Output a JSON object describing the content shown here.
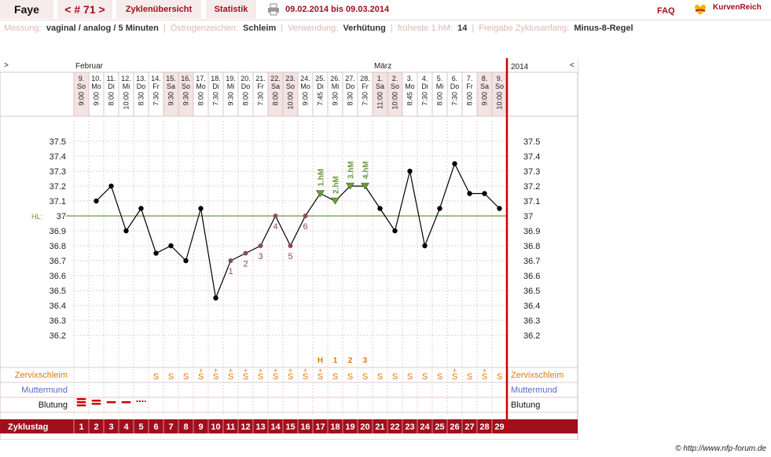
{
  "header": {
    "user": "Faye",
    "cycle_label": "< # 71 >",
    "overview_label": "Zyklenübersicht",
    "stats_label": "Statistik",
    "date_range": "09.02.2014 bis 09.03.2014",
    "faq_label": "FAQ",
    "logo_text": "KurvenReich",
    "print_icon": "printer-icon",
    "logo_icon": "heart-logo-icon"
  },
  "info": [
    {
      "key": "Messung:",
      "value": "vaginal / analog / 5 Minuten"
    },
    {
      "key": "Östrogenzeichen:",
      "value": "Schleim"
    },
    {
      "key": "Verwendung:",
      "value": "Verhütung"
    },
    {
      "key": "früheste 1.hM:",
      "value": "14"
    },
    {
      "key": "Freigabe Zyklusanfang:",
      "value": "Minus-8-Regel"
    }
  ],
  "chart": {
    "nav_left": ">",
    "nav_right": "<",
    "year": "2014",
    "month_feb": "Februar",
    "month_mar": "März",
    "days": [
      {
        "d": "9.",
        "w": "So",
        "t": "9:00",
        "we": true
      },
      {
        "d": "10.",
        "w": "Mo",
        "t": "9:00",
        "we": false
      },
      {
        "d": "11.",
        "w": "Di",
        "t": "8:00",
        "we": false
      },
      {
        "d": "12.",
        "w": "Mi",
        "t": "10:00",
        "we": false
      },
      {
        "d": "13.",
        "w": "Do",
        "t": "8:30",
        "we": false
      },
      {
        "d": "14.",
        "w": "Fr",
        "t": "7:30",
        "we": false
      },
      {
        "d": "15.",
        "w": "Sa",
        "t": "9:30",
        "we": true
      },
      {
        "d": "16.",
        "w": "So",
        "t": "9:30",
        "we": true
      },
      {
        "d": "17.",
        "w": "Mo",
        "t": "8:00",
        "we": false
      },
      {
        "d": "18.",
        "w": "Di",
        "t": "7:30",
        "we": false
      },
      {
        "d": "19.",
        "w": "Mi",
        "t": "9:30",
        "we": false
      },
      {
        "d": "20.",
        "w": "Do",
        "t": "8:00",
        "we": false
      },
      {
        "d": "21.",
        "w": "Fr",
        "t": "7:30",
        "we": false
      },
      {
        "d": "22.",
        "w": "Sa",
        "t": "8:00",
        "we": true
      },
      {
        "d": "23.",
        "w": "So",
        "t": "10:00",
        "we": true
      },
      {
        "d": "24.",
        "w": "Mo",
        "t": "9:00",
        "we": false
      },
      {
        "d": "25.",
        "w": "Di",
        "t": "7:45",
        "we": false
      },
      {
        "d": "26.",
        "w": "Mi",
        "t": "9:30",
        "we": false
      },
      {
        "d": "27.",
        "w": "Do",
        "t": "8:30",
        "we": false
      },
      {
        "d": "28.",
        "w": "Fr",
        "t": "7:30",
        "we": false
      },
      {
        "d": "1.",
        "w": "Sa",
        "t": "11:00",
        "we": true
      },
      {
        "d": "2.",
        "w": "So",
        "t": "10:00",
        "we": true
      },
      {
        "d": "3.",
        "w": "Mo",
        "t": "8:45",
        "we": false
      },
      {
        "d": "4.",
        "w": "Di",
        "t": "7:30",
        "we": false
      },
      {
        "d": "5.",
        "w": "Mi",
        "t": "8:00",
        "we": false
      },
      {
        "d": "6.",
        "w": "Do",
        "t": "7:30",
        "we": false
      },
      {
        "d": "7.",
        "w": "Fr",
        "t": "8:00",
        "we": false
      },
      {
        "d": "8.",
        "w": "Sa",
        "t": "9:00",
        "we": true
      },
      {
        "d": "9.",
        "w": "So",
        "t": "10:00",
        "we": true
      }
    ],
    "y_ticks": [
      "37.5",
      "37.4",
      "37.3",
      "37.2",
      "37.1",
      "37",
      "36.9",
      "36.8",
      "36.7",
      "36.6",
      "36.5",
      "36.4",
      "36.3",
      "36.2"
    ],
    "hl_label": "HL:",
    "temps": [
      null,
      37.1,
      37.2,
      36.9,
      37.05,
      36.75,
      36.8,
      36.7,
      37.05,
      36.45,
      36.7,
      36.75,
      36.8,
      37.0,
      36.8,
      37.0,
      37.15,
      37.1,
      37.2,
      37.2,
      37.05,
      36.9,
      37.3,
      36.8,
      37.05,
      37.35,
      37.15,
      37.15,
      37.05
    ],
    "coverline": 37.0,
    "low_labels": [
      {
        "idx": 10,
        "label": "1"
      },
      {
        "idx": 11,
        "label": "2"
      },
      {
        "idx": 12,
        "label": "3"
      },
      {
        "idx": 13,
        "label": "4"
      },
      {
        "idx": 14,
        "label": "5"
      },
      {
        "idx": 15,
        "label": "6"
      }
    ],
    "high_labels": [
      {
        "idx": 16,
        "label": "1.hM"
      },
      {
        "idx": 17,
        "label": "2.hM"
      },
      {
        "idx": 18,
        "label": "3.hM"
      },
      {
        "idx": 19,
        "label": "4.hM"
      }
    ],
    "peak_markers": [
      {
        "idx": 16,
        "label": "H"
      },
      {
        "idx": 17,
        "label": "1"
      },
      {
        "idx": 18,
        "label": "2"
      },
      {
        "idx": 19,
        "label": "3"
      }
    ],
    "row_mucus": "Zervixschleim",
    "row_cervix": "Muttermund",
    "row_bleeding": "Blutung",
    "row_day": "Zyklustag",
    "mucus": [
      "",
      "",
      "",
      "",
      "",
      "S",
      "S",
      "S",
      "S+",
      "S+",
      "S+",
      "S+",
      "S+",
      "S+",
      "S+",
      "S+",
      "S+",
      "S",
      "S",
      "S",
      "S",
      "S",
      "S",
      "S",
      "S",
      "S+",
      "S",
      "S+",
      "S"
    ],
    "bleeding": [
      3,
      2,
      1,
      1,
      0.5,
      0,
      0,
      0,
      0,
      0,
      0,
      0,
      0,
      0,
      0,
      0,
      0,
      0,
      0,
      0,
      0,
      0,
      0,
      0,
      0,
      0,
      0,
      0,
      0
    ],
    "cycle_days": [
      "1",
      "2",
      "3",
      "4",
      "5",
      "6",
      "7",
      "8",
      "9",
      "10",
      "11",
      "12",
      "13",
      "14",
      "15",
      "16",
      "17",
      "18",
      "19",
      "20",
      "21",
      "22",
      "23",
      "24",
      "25",
      "26",
      "27",
      "28",
      "29"
    ],
    "colors": {
      "accent": "#a0101c",
      "grid": "#e6cfcf",
      "coverline": "#6a9a3a",
      "highlabel": "#6a9a3a",
      "lowlabel": "#8a4b5a",
      "mucus": "#e07a10",
      "cervix": "#5a67c8",
      "bleed": "#cc0000",
      "weekend": "#f3e3e3",
      "curve": "#000000"
    }
  },
  "copyright": "© http://www.nfp-forum.de"
}
